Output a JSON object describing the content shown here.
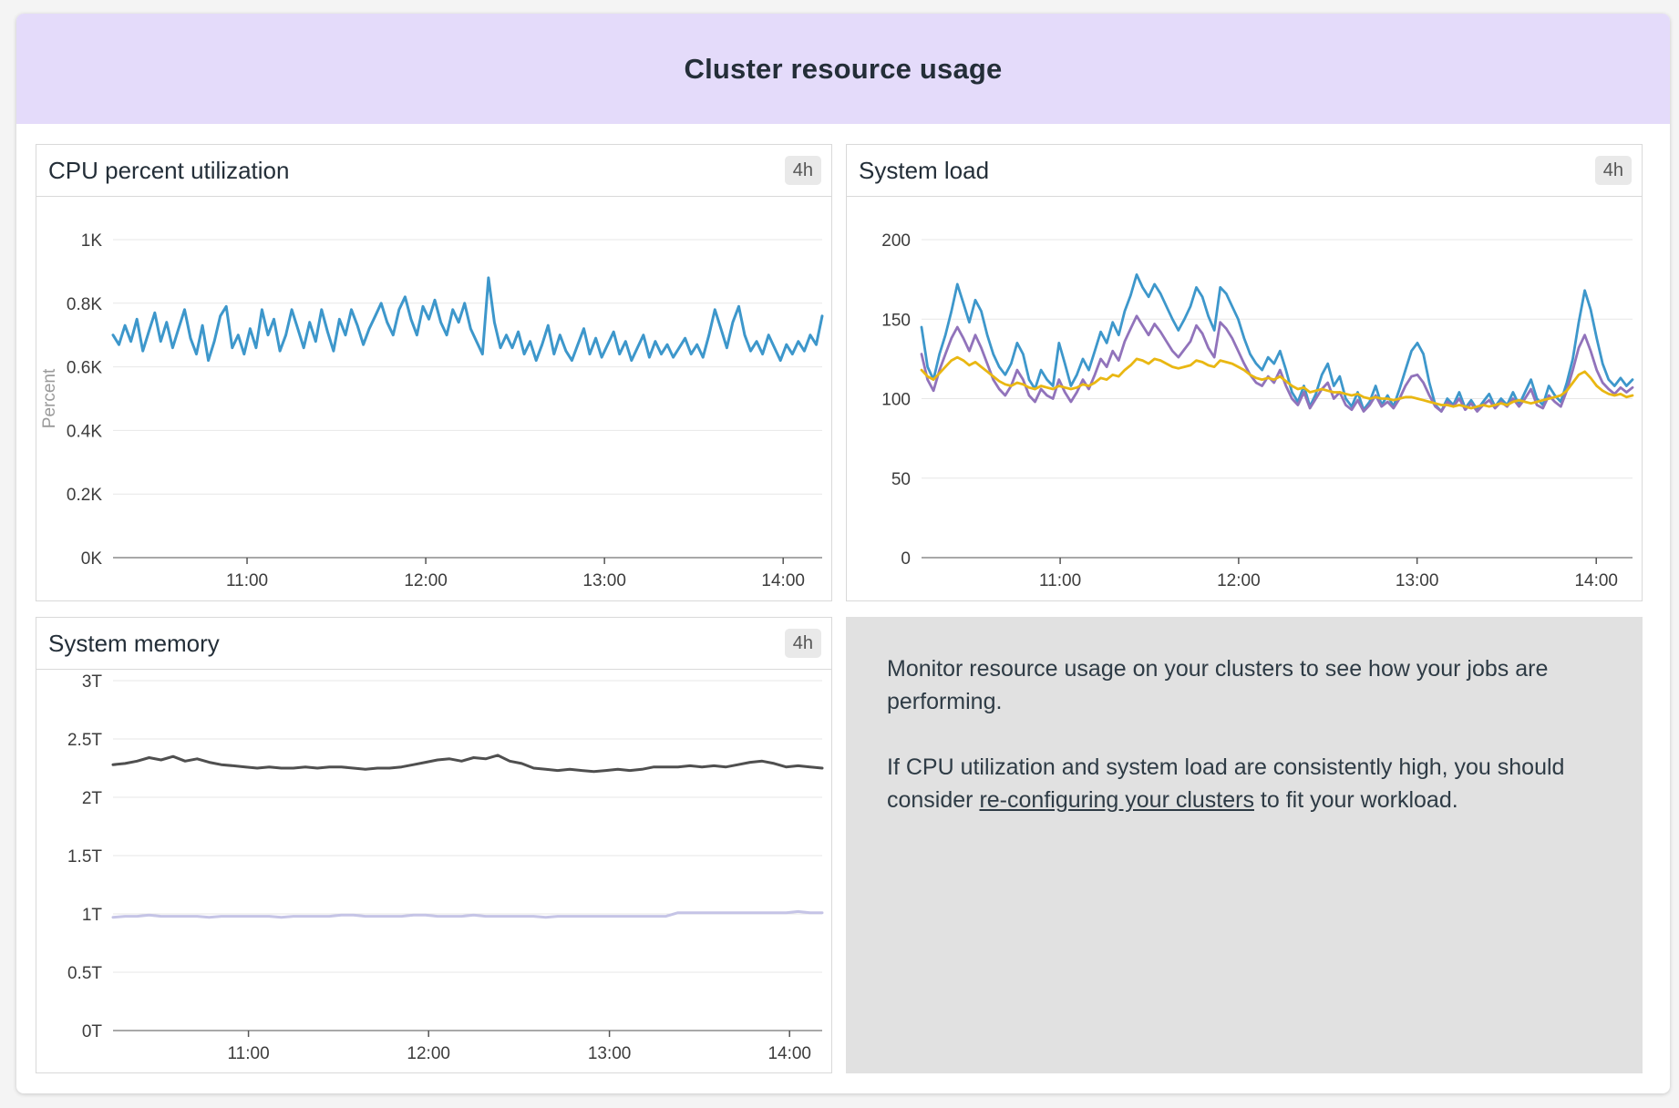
{
  "header": {
    "title": "Cluster resource usage"
  },
  "panels": {
    "cpu": {
      "title": "CPU percent utilization",
      "badge": "4h"
    },
    "load": {
      "title": "System load",
      "badge": "4h"
    },
    "memory": {
      "title": "System memory",
      "badge": "4h"
    },
    "info": {
      "paragraph1": "Monitor resource usage on your clusters to see how your jobs are performing.",
      "paragraph2_prefix": "If CPU utilization and system load are consistently high, you should consider ",
      "link_text": "re-configuring your clusters",
      "paragraph2_suffix": " to fit your workload."
    }
  },
  "colors": {
    "accent_header": "#e4dbfa",
    "cpu_line": "#3d97cb",
    "load_1min": "#3d97cb",
    "load_5min": "#9173bb",
    "load_15min": "#e9b712",
    "memory_used": "#4f4f4f",
    "memory_secondary": "#c5c4e6"
  },
  "chart_data": [
    {
      "type": "line",
      "title": "CPU percent utilization",
      "ylabel": "Percent",
      "xlabel": "",
      "ylim": [
        0,
        1
      ],
      "grid": true,
      "legend": "none",
      "yticks": [
        {
          "v": 0,
          "l": "0K"
        },
        {
          "v": 0.2,
          "l": "0.2K"
        },
        {
          "v": 0.4,
          "l": "0.4K"
        },
        {
          "v": 0.6,
          "l": "0.6K"
        },
        {
          "v": 0.8,
          "l": "0.8K"
        },
        {
          "v": 1,
          "l": "1K"
        }
      ],
      "xticks": [
        {
          "f": 0.189,
          "l": "11:00"
        },
        {
          "f": 0.441,
          "l": "12:00"
        },
        {
          "f": 0.693,
          "l": "13:00"
        },
        {
          "f": 0.945,
          "l": "14:00"
        }
      ],
      "series": [
        {
          "name": "cpu-percent",
          "color": "#3d97cb",
          "width": 3,
          "values": [
            0.7,
            0.67,
            0.73,
            0.68,
            0.75,
            0.65,
            0.71,
            0.77,
            0.68,
            0.74,
            0.66,
            0.72,
            0.78,
            0.69,
            0.64,
            0.73,
            0.62,
            0.68,
            0.76,
            0.79,
            0.66,
            0.7,
            0.64,
            0.72,
            0.66,
            0.78,
            0.7,
            0.75,
            0.65,
            0.7,
            0.78,
            0.72,
            0.66,
            0.74,
            0.68,
            0.78,
            0.71,
            0.65,
            0.75,
            0.7,
            0.78,
            0.73,
            0.67,
            0.72,
            0.76,
            0.8,
            0.74,
            0.7,
            0.78,
            0.82,
            0.75,
            0.7,
            0.79,
            0.75,
            0.81,
            0.74,
            0.7,
            0.78,
            0.74,
            0.8,
            0.72,
            0.68,
            0.64,
            0.88,
            0.74,
            0.66,
            0.7,
            0.66,
            0.71,
            0.64,
            0.68,
            0.62,
            0.67,
            0.73,
            0.64,
            0.7,
            0.65,
            0.62,
            0.67,
            0.72,
            0.64,
            0.69,
            0.63,
            0.67,
            0.71,
            0.64,
            0.68,
            0.62,
            0.66,
            0.7,
            0.63,
            0.68,
            0.64,
            0.67,
            0.63,
            0.66,
            0.69,
            0.64,
            0.67,
            0.63,
            0.7,
            0.78,
            0.72,
            0.66,
            0.74,
            0.79,
            0.7,
            0.65,
            0.68,
            0.64,
            0.7,
            0.66,
            0.62,
            0.67,
            0.64,
            0.68,
            0.65,
            0.7,
            0.67,
            0.76
          ]
        }
      ]
    },
    {
      "type": "line",
      "title": "System load",
      "ylabel": "",
      "xlabel": "",
      "ylim": [
        0,
        200
      ],
      "grid": true,
      "legend": "none",
      "yticks": [
        {
          "v": 0,
          "l": "0"
        },
        {
          "v": 50,
          "l": "50"
        },
        {
          "v": 100,
          "l": "100"
        },
        {
          "v": 150,
          "l": "150"
        },
        {
          "v": 200,
          "l": "200"
        }
      ],
      "xticks": [
        {
          "f": 0.195,
          "l": "11:00"
        },
        {
          "f": 0.446,
          "l": "12:00"
        },
        {
          "f": 0.697,
          "l": "13:00"
        },
        {
          "f": 0.949,
          "l": "14:00"
        }
      ],
      "series": [
        {
          "name": "load-high",
          "color": "#3d97cb",
          "width": 2.8,
          "values": [
            145,
            120,
            112,
            128,
            140,
            155,
            172,
            160,
            148,
            162,
            155,
            140,
            128,
            120,
            115,
            122,
            135,
            128,
            112,
            106,
            118,
            112,
            108,
            135,
            122,
            108,
            115,
            125,
            118,
            130,
            142,
            135,
            148,
            140,
            155,
            165,
            178,
            170,
            164,
            172,
            166,
            158,
            150,
            143,
            150,
            158,
            170,
            164,
            152,
            143,
            170,
            166,
            158,
            150,
            138,
            128,
            122,
            118,
            126,
            122,
            130,
            118,
            104,
            98,
            108,
            95,
            103,
            115,
            122,
            108,
            114,
            100,
            95,
            104,
            93,
            98,
            108,
            96,
            102,
            95,
            106,
            118,
            130,
            135,
            128,
            110,
            96,
            92,
            100,
            96,
            104,
            94,
            99,
            93,
            98,
            103,
            95,
            100,
            96,
            104,
            96,
            104,
            112,
            100,
            96,
            108,
            102,
            98,
            110,
            125,
            148,
            168,
            156,
            138,
            122,
            112,
            108,
            113,
            108,
            112
          ]
        },
        {
          "name": "load-mid",
          "color": "#9173bb",
          "width": 2.8,
          "values": [
            128,
            112,
            105,
            118,
            128,
            138,
            145,
            138,
            130,
            140,
            132,
            122,
            112,
            106,
            102,
            108,
            118,
            112,
            102,
            98,
            106,
            102,
            100,
            112,
            104,
            98,
            104,
            112,
            106,
            115,
            125,
            120,
            130,
            124,
            136,
            144,
            152,
            146,
            140,
            147,
            142,
            136,
            130,
            126,
            131,
            136,
            146,
            141,
            132,
            126,
            148,
            144,
            138,
            130,
            122,
            115,
            110,
            108,
            114,
            110,
            118,
            108,
            100,
            96,
            104,
            94,
            100,
            106,
            110,
            100,
            104,
            96,
            93,
            99,
            92,
            96,
            102,
            95,
            98,
            94,
            100,
            108,
            114,
            115,
            110,
            102,
            95,
            92,
            98,
            95,
            100,
            93,
            97,
            92,
            96,
            99,
            94,
            98,
            95,
            100,
            95,
            100,
            106,
            96,
            94,
            102,
            98,
            95,
            105,
            118,
            132,
            140,
            130,
            118,
            110,
            106,
            103,
            107,
            104,
            107
          ]
        },
        {
          "name": "load-low",
          "color": "#e9b712",
          "width": 2.8,
          "values": [
            118,
            114,
            112,
            116,
            120,
            124,
            126,
            124,
            121,
            123,
            120,
            117,
            114,
            111,
            109,
            108,
            110,
            109,
            107,
            106,
            108,
            107,
            106,
            108,
            107,
            106,
            107,
            109,
            108,
            110,
            113,
            112,
            115,
            114,
            118,
            121,
            125,
            124,
            122,
            125,
            124,
            122,
            120,
            119,
            120,
            121,
            124,
            123,
            121,
            120,
            124,
            123,
            122,
            120,
            118,
            115,
            113,
            112,
            113,
            112,
            114,
            111,
            108,
            106,
            107,
            104,
            105,
            106,
            105,
            104,
            104,
            103,
            102,
            103,
            101,
            100,
            101,
            100,
            100,
            99,
            100,
            101,
            101,
            100,
            99,
            98,
            97,
            96,
            96,
            95,
            96,
            95,
            94,
            95,
            96,
            95,
            96,
            97,
            96,
            98,
            99,
            98,
            97,
            98,
            99,
            100,
            101,
            102,
            105,
            110,
            115,
            117,
            113,
            108,
            105,
            103,
            102,
            103,
            101,
            102
          ]
        }
      ]
    },
    {
      "type": "line",
      "title": "System memory",
      "ylabel": "",
      "xlabel": "",
      "ylim": [
        0,
        3
      ],
      "grid": true,
      "legend": "none",
      "yticks": [
        {
          "v": 0,
          "l": "0T"
        },
        {
          "v": 0.5,
          "l": "0.5T"
        },
        {
          "v": 1,
          "l": "1T"
        },
        {
          "v": 1.5,
          "l": "1.5T"
        },
        {
          "v": 2,
          "l": "2T"
        },
        {
          "v": 2.5,
          "l": "2.5T"
        },
        {
          "v": 3,
          "l": "3T"
        }
      ],
      "xticks": [
        {
          "f": 0.191,
          "l": "11:00"
        },
        {
          "f": 0.445,
          "l": "12:00"
        },
        {
          "f": 0.7,
          "l": "13:00"
        },
        {
          "f": 0.954,
          "l": "14:00"
        }
      ],
      "series": [
        {
          "name": "memory-used",
          "color": "#4f4f4f",
          "width": 3,
          "values": [
            2.28,
            2.29,
            2.31,
            2.34,
            2.32,
            2.35,
            2.31,
            2.33,
            2.3,
            2.28,
            2.27,
            2.26,
            2.25,
            2.26,
            2.25,
            2.25,
            2.26,
            2.25,
            2.26,
            2.26,
            2.25,
            2.24,
            2.25,
            2.25,
            2.26,
            2.28,
            2.3,
            2.32,
            2.33,
            2.31,
            2.34,
            2.33,
            2.36,
            2.31,
            2.29,
            2.25,
            2.24,
            2.23,
            2.24,
            2.23,
            2.22,
            2.23,
            2.24,
            2.23,
            2.24,
            2.26,
            2.26,
            2.26,
            2.27,
            2.26,
            2.27,
            2.26,
            2.28,
            2.3,
            2.31,
            2.29,
            2.26,
            2.27,
            2.26,
            2.25
          ]
        },
        {
          "name": "memory-secondary",
          "color": "#c5c4e6",
          "width": 3,
          "values": [
            0.97,
            0.98,
            0.98,
            0.99,
            0.98,
            0.98,
            0.98,
            0.98,
            0.97,
            0.98,
            0.98,
            0.98,
            0.98,
            0.98,
            0.97,
            0.98,
            0.98,
            0.98,
            0.98,
            0.99,
            0.99,
            0.98,
            0.98,
            0.98,
            0.98,
            0.99,
            0.99,
            0.98,
            0.98,
            0.98,
            0.99,
            0.98,
            0.98,
            0.98,
            0.98,
            0.98,
            0.97,
            0.98,
            0.98,
            0.98,
            0.98,
            0.98,
            0.98,
            0.98,
            0.98,
            0.98,
            0.98,
            1.01,
            1.01,
            1.01,
            1.01,
            1.01,
            1.01,
            1.01,
            1.01,
            1.01,
            1.01,
            1.02,
            1.01,
            1.01
          ]
        }
      ]
    }
  ]
}
